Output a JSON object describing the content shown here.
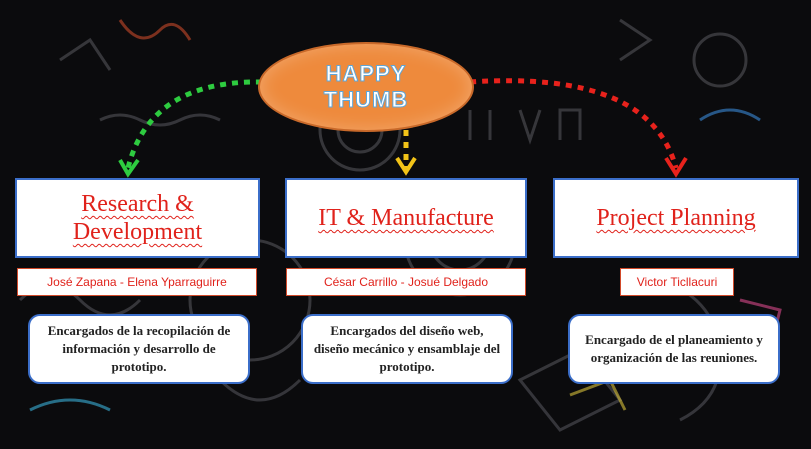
{
  "hub": {
    "line1": "HAPPY",
    "line2": "THUMB"
  },
  "departments": [
    {
      "title": "Research & Development",
      "members": "José Zapana - Elena Yparraguirre",
      "description": "Encargados de la recopilación de información y desarrollo de prototipo.",
      "arrow_color": "#2ecc40"
    },
    {
      "title": "IT & Manufacture",
      "members": "César Carrillo - Josué Delgado",
      "description": "Encargados del diseño web, diseño mecánico y ensamblaje del prototipo.",
      "arrow_color": "#f2c318"
    },
    {
      "title": "Project Planning",
      "members": "Victor Ticllacuri",
      "description": "Encargado de el planeamiento y organización de las reuniones.",
      "arrow_color": "#e8221c"
    }
  ],
  "colors": {
    "hub_fill": "#ee8a3c",
    "dept_text": "#e0221b",
    "box_border": "#3b6ec9"
  }
}
